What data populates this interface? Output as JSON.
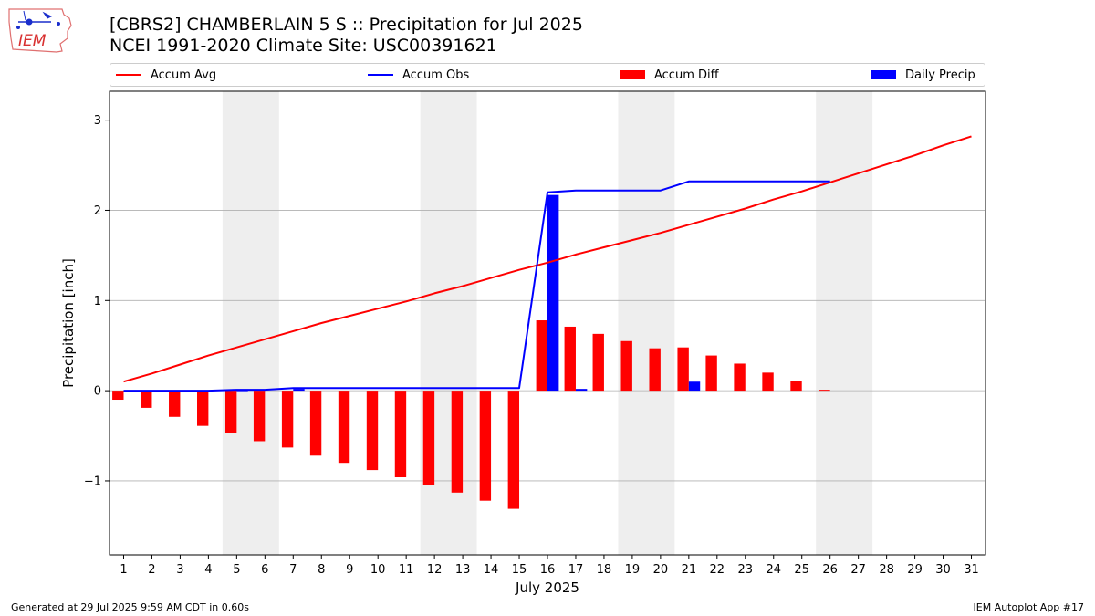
{
  "header": {
    "title_line1": "[CBRS2] CHAMBERLAIN 5 S :: Precipitation for Jul 2025",
    "title_line2": "NCEI 1991-2020 Climate Site: USC00391621",
    "logo_text": "IEM"
  },
  "footer": {
    "generated": "Generated at 29 Jul 2025 9:59 AM CDT in 0.60s",
    "app": "IEM Autoplot App #17"
  },
  "colors": {
    "avg": "#ff0000",
    "obs": "#0000ff",
    "diff": "#ff0000",
    "daily": "#0000ff",
    "weekend_shade": "#eeeeee",
    "grid": "#b0b0b0"
  },
  "chart_data": {
    "type": "bar",
    "xlabel": "July 2025",
    "ylabel": "Precipitation [inch]",
    "ylim": [
      -1.82,
      3.32
    ],
    "yticks": [
      -1,
      0,
      1,
      2,
      3
    ],
    "ytick_labels": [
      "−1",
      "0",
      "1",
      "2",
      "3"
    ],
    "xlim": [
      0.5,
      31.5
    ],
    "days": [
      1,
      2,
      3,
      4,
      5,
      6,
      7,
      8,
      9,
      10,
      11,
      12,
      13,
      14,
      15,
      16,
      17,
      18,
      19,
      20,
      21,
      22,
      23,
      24,
      25,
      26,
      27,
      28,
      29,
      30,
      31
    ],
    "grid": "horizontal",
    "legend_placement": "top",
    "weekend_spans": [
      [
        5,
        6
      ],
      [
        12,
        13
      ],
      [
        19,
        20
      ],
      [
        26,
        27
      ]
    ],
    "legend": [
      {
        "name": "Accum Avg",
        "kind": "line",
        "color": "#ff0000"
      },
      {
        "name": "Accum Obs",
        "kind": "line",
        "color": "#0000ff"
      },
      {
        "name": "Accum Diff",
        "kind": "bar",
        "color": "#ff0000"
      },
      {
        "name": "Daily Precip",
        "kind": "bar",
        "color": "#0000ff"
      }
    ],
    "series": [
      {
        "name": "Accum Avg",
        "type": "line",
        "x": [
          1,
          2,
          3,
          4,
          5,
          6,
          7,
          8,
          9,
          10,
          11,
          12,
          13,
          14,
          15,
          16,
          17,
          18,
          19,
          20,
          21,
          22,
          23,
          24,
          25,
          26,
          27,
          28,
          29,
          30,
          31
        ],
        "values": [
          0.1,
          0.19,
          0.29,
          0.39,
          0.48,
          0.57,
          0.66,
          0.75,
          0.83,
          0.91,
          0.99,
          1.08,
          1.16,
          1.25,
          1.34,
          1.42,
          1.51,
          1.59,
          1.67,
          1.75,
          1.84,
          1.93,
          2.02,
          2.12,
          2.21,
          2.31,
          2.41,
          2.51,
          2.61,
          2.72,
          2.82
        ]
      },
      {
        "name": "Accum Obs",
        "type": "line",
        "x": [
          1,
          2,
          3,
          4,
          5,
          6,
          7,
          8,
          9,
          10,
          11,
          12,
          13,
          14,
          15,
          16,
          17,
          18,
          19,
          20,
          21,
          22,
          23,
          24,
          25,
          26
        ],
        "values": [
          0.0,
          0.0,
          0.0,
          0.0,
          0.01,
          0.01,
          0.03,
          0.03,
          0.03,
          0.03,
          0.03,
          0.03,
          0.03,
          0.03,
          0.03,
          2.2,
          2.22,
          2.22,
          2.22,
          2.22,
          2.32,
          2.32,
          2.32,
          2.32,
          2.32,
          2.32
        ]
      },
      {
        "name": "Accum Diff",
        "type": "bar",
        "x": [
          1,
          2,
          3,
          4,
          5,
          6,
          7,
          8,
          9,
          10,
          11,
          12,
          13,
          14,
          15,
          16,
          17,
          18,
          19,
          20,
          21,
          22,
          23,
          24,
          25,
          26
        ],
        "values": [
          -0.1,
          -0.19,
          -0.29,
          -0.39,
          -0.47,
          -0.56,
          -0.63,
          -0.72,
          -0.8,
          -0.88,
          -0.96,
          -1.05,
          -1.13,
          -1.22,
          -1.31,
          0.78,
          0.71,
          0.63,
          0.55,
          0.47,
          0.48,
          0.39,
          0.3,
          0.2,
          0.11,
          0.01
        ]
      },
      {
        "name": "Daily Precip",
        "type": "bar",
        "x": [
          5,
          7,
          16,
          17,
          21
        ],
        "values": [
          0.01,
          0.02,
          2.17,
          0.02,
          0.1
        ]
      }
    ]
  }
}
